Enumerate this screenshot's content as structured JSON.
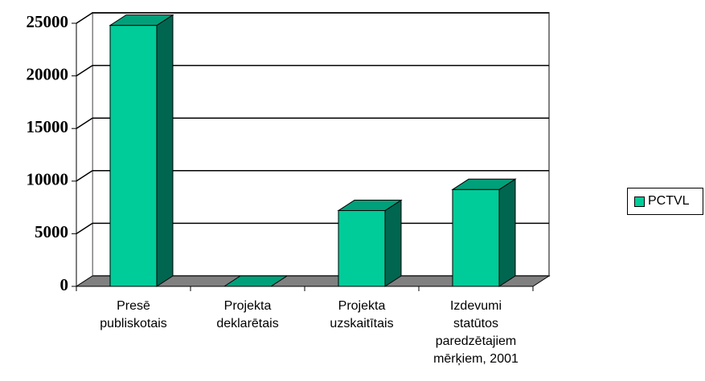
{
  "chart_data": {
    "type": "bar3d",
    "categories": [
      "Presē publiskotais",
      "Projekta deklarētais",
      "Projekta uzskaitītais",
      "Izdevumi statūtos paredzētajiem mērķiem, 2001"
    ],
    "series": [
      {
        "name": "PCTVL",
        "color": "#00cc99",
        "values": [
          24800,
          0,
          7200,
          9200
        ]
      }
    ],
    "ylim": [
      0,
      25000
    ],
    "yticks": [
      0,
      5000,
      10000,
      15000,
      20000,
      25000
    ],
    "grid": true,
    "legend": "right"
  }
}
